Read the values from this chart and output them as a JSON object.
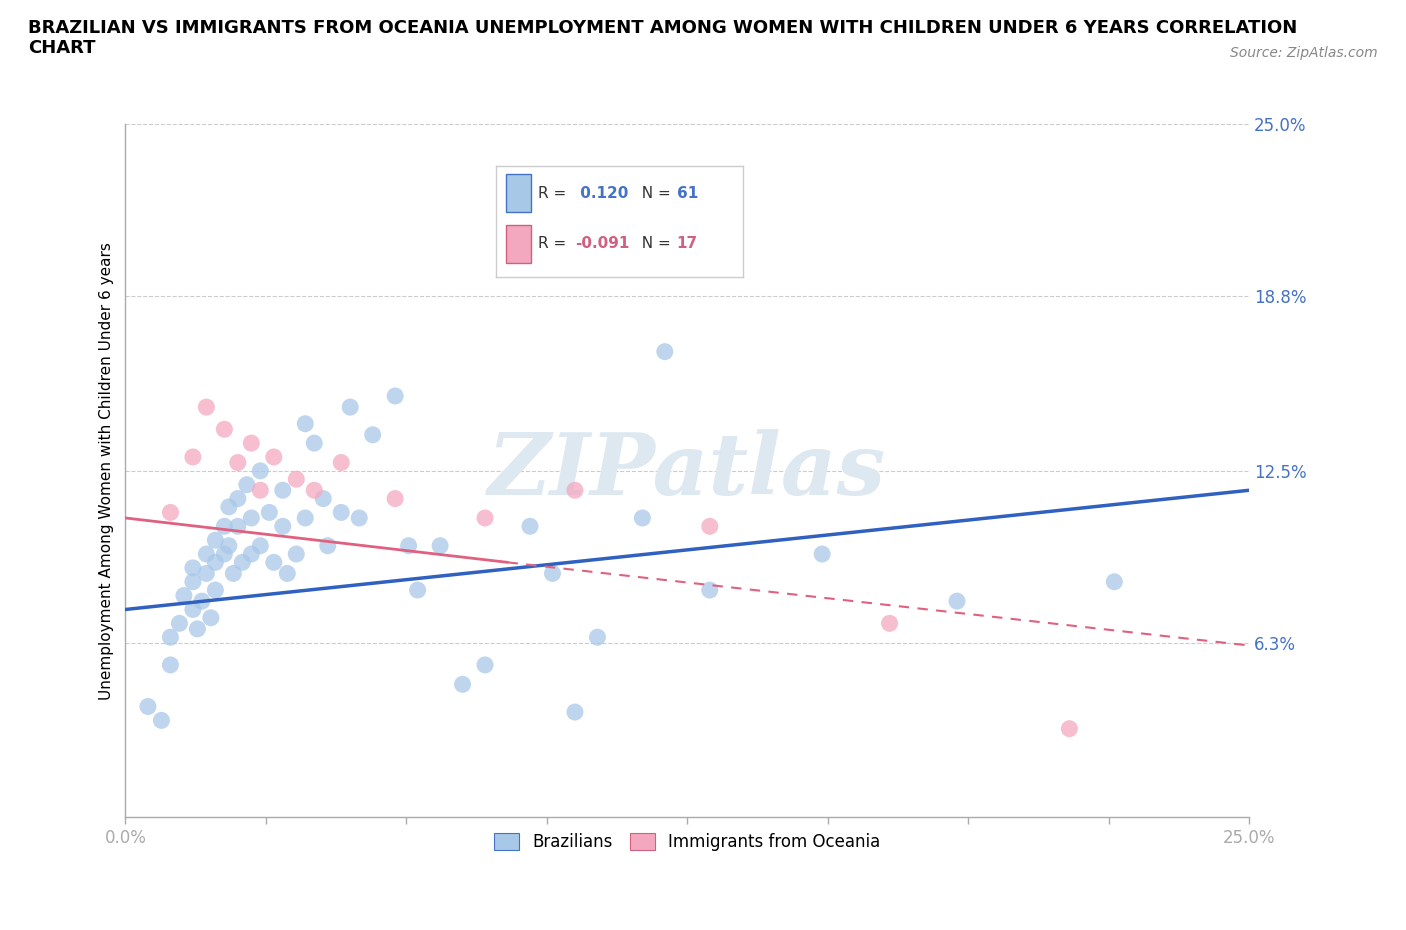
{
  "title": "BRAZILIAN VS IMMIGRANTS FROM OCEANIA UNEMPLOYMENT AMONG WOMEN WITH CHILDREN UNDER 6 YEARS CORRELATION\nCHART",
  "source": "Source: ZipAtlas.com",
  "ylabel": "Unemployment Among Women with Children Under 6 years",
  "xlim": [
    0.0,
    0.25
  ],
  "ylim": [
    0.0,
    0.25
  ],
  "yticks": [
    0.063,
    0.125,
    0.188,
    0.25
  ],
  "ytick_labels": [
    "6.3%",
    "12.5%",
    "18.8%",
    "25.0%"
  ],
  "r_brazilian": 0.12,
  "n_brazilian": 61,
  "r_oceania": -0.091,
  "n_oceania": 17,
  "color_brazilian": "#a8c8e8",
  "color_oceania": "#f4a8c0",
  "trendline_brazilian": "#3060c0",
  "trendline_oceania": "#e06080",
  "watermark": "ZIPatlas",
  "watermark_color": "#dde8f0",
  "brazilians_x": [
    0.005,
    0.008,
    0.01,
    0.01,
    0.012,
    0.013,
    0.015,
    0.015,
    0.015,
    0.016,
    0.017,
    0.018,
    0.018,
    0.019,
    0.02,
    0.02,
    0.02,
    0.022,
    0.022,
    0.023,
    0.023,
    0.024,
    0.025,
    0.025,
    0.026,
    0.027,
    0.028,
    0.028,
    0.03,
    0.03,
    0.032,
    0.033,
    0.035,
    0.035,
    0.036,
    0.038,
    0.04,
    0.04,
    0.042,
    0.044,
    0.045,
    0.048,
    0.05,
    0.052,
    0.055,
    0.06,
    0.063,
    0.065,
    0.07,
    0.075,
    0.08,
    0.09,
    0.095,
    0.1,
    0.105,
    0.115,
    0.12,
    0.13,
    0.155,
    0.185,
    0.22
  ],
  "brazilians_y": [
    0.04,
    0.035,
    0.055,
    0.065,
    0.07,
    0.08,
    0.09,
    0.085,
    0.075,
    0.068,
    0.078,
    0.095,
    0.088,
    0.072,
    0.1,
    0.092,
    0.082,
    0.105,
    0.095,
    0.112,
    0.098,
    0.088,
    0.115,
    0.105,
    0.092,
    0.12,
    0.108,
    0.095,
    0.125,
    0.098,
    0.11,
    0.092,
    0.118,
    0.105,
    0.088,
    0.095,
    0.142,
    0.108,
    0.135,
    0.115,
    0.098,
    0.11,
    0.148,
    0.108,
    0.138,
    0.152,
    0.098,
    0.082,
    0.098,
    0.048,
    0.055,
    0.105,
    0.088,
    0.038,
    0.065,
    0.108,
    0.168,
    0.082,
    0.095,
    0.078,
    0.085
  ],
  "oceania_x": [
    0.01,
    0.015,
    0.018,
    0.022,
    0.025,
    0.028,
    0.03,
    0.033,
    0.038,
    0.042,
    0.048,
    0.06,
    0.08,
    0.1,
    0.13,
    0.17,
    0.21
  ],
  "oceania_y": [
    0.11,
    0.13,
    0.148,
    0.14,
    0.128,
    0.135,
    0.118,
    0.13,
    0.122,
    0.118,
    0.128,
    0.115,
    0.108,
    0.118,
    0.105,
    0.07,
    0.032
  ],
  "trendline_b_x0": 0.0,
  "trendline_b_y0": 0.075,
  "trendline_b_x1": 0.25,
  "trendline_b_y1": 0.118,
  "trendline_o_solid_x0": 0.0,
  "trendline_o_solid_y0": 0.108,
  "trendline_o_solid_x1": 0.085,
  "trendline_o_solid_y1": 0.092,
  "trendline_o_dash_x0": 0.085,
  "trendline_o_dash_y0": 0.092,
  "trendline_o_dash_x1": 0.25,
  "trendline_o_dash_y1": 0.062
}
